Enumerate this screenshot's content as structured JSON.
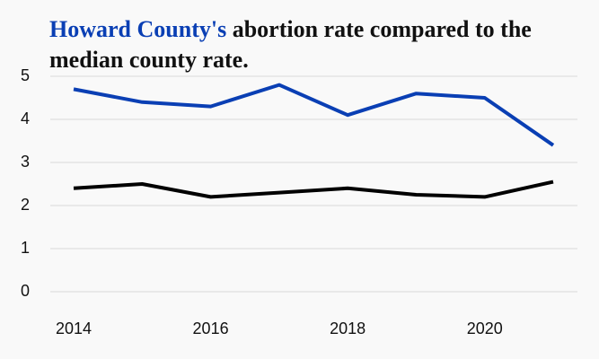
{
  "title": {
    "highlight": "Howard County's",
    "rest": " abortion rate compared to the median county rate."
  },
  "colors": {
    "background": "#f9f9f9",
    "highlight": "#0a3fb4",
    "county_line": "#0a3fb4",
    "median_line": "#000000",
    "grid": "#d9d9d9"
  },
  "chart_data": {
    "type": "line",
    "title": "Howard County's abortion rate compared to the median county rate.",
    "xlabel": "",
    "ylabel": "",
    "x": [
      2014,
      2015,
      2016,
      2017,
      2018,
      2019,
      2020,
      2021
    ],
    "xticks": [
      2014,
      2016,
      2018,
      2020
    ],
    "ylim": [
      0,
      5
    ],
    "yticks": [
      0,
      1,
      2,
      3,
      4,
      5
    ],
    "grid": true,
    "legend": "none",
    "series": [
      {
        "color": "#0a3fb4",
        "values": [
          4.7,
          4.4,
          4.3,
          4.8,
          4.1,
          4.6,
          4.5,
          3.4
        ]
      },
      {
        "color": "#000000",
        "values": [
          2.4,
          2.5,
          2.2,
          2.3,
          2.4,
          2.25,
          2.2,
          2.55
        ]
      }
    ]
  }
}
